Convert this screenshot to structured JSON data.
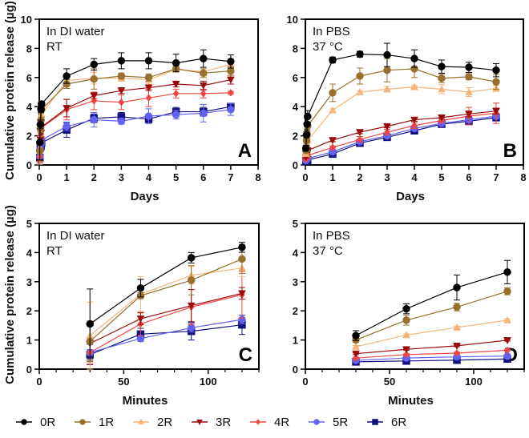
{
  "chart_data": [
    {
      "panel": "A",
      "type": "line",
      "xlabel": "Days",
      "ylabel": "Cumulative protein release (µg)",
      "annotation": [
        "In DI water",
        "RT"
      ],
      "xlim": [
        0,
        8
      ],
      "ylim": [
        0,
        10
      ],
      "xticks": [
        0,
        1,
        2,
        3,
        4,
        5,
        6,
        7,
        8
      ],
      "yticks": [
        0,
        2,
        4,
        6,
        8,
        10
      ],
      "x": [
        0.021,
        0.042,
        0.0625,
        0.083,
        1,
        2,
        3,
        4,
        5,
        6,
        7
      ],
      "series": [
        {
          "name": "0R",
          "values": [
            1.55,
            2.78,
            3.82,
            4.18,
            6.1,
            6.9,
            7.15,
            7.15,
            7.0,
            7.3,
            7.1
          ],
          "error": [
            1.2,
            0.3,
            0.2,
            0.15,
            0.5,
            0.4,
            0.55,
            0.55,
            0.6,
            0.6,
            0.45
          ]
        },
        {
          "name": "1R",
          "values": [
            0.95,
            2.52,
            3.05,
            3.78,
            5.55,
            5.9,
            6.1,
            6.0,
            6.6,
            6.3,
            6.45
          ],
          "error": [
            0.7,
            0.3,
            0.5,
            0.5,
            0.3,
            0.7,
            0.2,
            0.25,
            0.2,
            0.3,
            0.3
          ]
        },
        {
          "name": "2R",
          "values": [
            1.15,
            2.57,
            3.22,
            3.47,
            5.8,
            5.95,
            5.95,
            5.85,
            6.55,
            6.4,
            6.9
          ],
          "error": [
            1.1,
            0.6,
            0.3,
            0.3,
            0.3,
            0.4,
            0.2,
            0.3,
            0.2,
            0.3,
            0.4
          ]
        },
        {
          "name": "3R",
          "values": [
            0.88,
            1.73,
            2.18,
            2.6,
            3.9,
            4.75,
            5.1,
            5.3,
            5.55,
            5.45,
            5.85
          ],
          "error": [
            0.6,
            0.3,
            0.5,
            0.2,
            0.6,
            0.2,
            0.2,
            0.2,
            0.2,
            0.3,
            0.3
          ]
        },
        {
          "name": "4R",
          "values": [
            0.57,
            1.55,
            2.13,
            2.55,
            3.8,
            4.4,
            4.3,
            4.6,
            4.9,
            4.9,
            4.95
          ],
          "error": [
            0.4,
            0.4,
            0.6,
            0.6,
            0.7,
            0.6,
            0.5,
            0.6,
            0.3,
            0.3,
            0.1
          ]
        },
        {
          "name": "5R",
          "values": [
            0.57,
            1.05,
            1.42,
            1.7,
            2.65,
            3.1,
            3.0,
            3.35,
            3.45,
            3.55,
            3.8
          ],
          "error": [
            0.1,
            0.1,
            0.15,
            0.15,
            0.3,
            0.5,
            0.2,
            0.5,
            0.3,
            0.6,
            0.4
          ]
        },
        {
          "name": "6R",
          "values": [
            0.5,
            1.2,
            1.3,
            1.52,
            2.4,
            3.2,
            3.3,
            3.15,
            3.65,
            3.65,
            4.0
          ],
          "error": [
            0.35,
            0.2,
            0.3,
            0.3,
            0.5,
            0.3,
            0.3,
            0.3,
            0.3,
            0.3,
            0.2
          ]
        }
      ]
    },
    {
      "panel": "B",
      "type": "line",
      "xlabel": "Days",
      "ylabel": "",
      "annotation": [
        "In PBS",
        "37 °C"
      ],
      "xlim": [
        0,
        8
      ],
      "ylim": [
        0,
        10
      ],
      "xticks": [
        0,
        1,
        2,
        3,
        4,
        5,
        6,
        7,
        8
      ],
      "yticks": [
        0,
        2,
        4,
        6,
        8,
        10
      ],
      "x": [
        0.021,
        0.042,
        0.0625,
        0.083,
        1,
        2,
        3,
        4,
        5,
        6,
        7
      ],
      "series": [
        {
          "name": "0R",
          "values": [
            1.15,
            2.07,
            2.8,
            3.33,
            7.2,
            7.6,
            7.55,
            7.3,
            6.75,
            6.7,
            6.5
          ],
          "error": [
            0.2,
            0.2,
            0.4,
            0.4,
            0.2,
            0.2,
            0.8,
            0.6,
            0.45,
            0.35,
            0.45
          ]
        },
        {
          "name": "1R",
          "values": [
            1.0,
            1.68,
            2.13,
            2.67,
            4.95,
            6.1,
            6.5,
            6.6,
            5.95,
            6.05,
            5.7
          ],
          "error": [
            0.1,
            0.2,
            0.15,
            0.1,
            0.6,
            0.55,
            0.8,
            0.6,
            0.3,
            0.2,
            0.5
          ]
        },
        {
          "name": "2R",
          "values": [
            0.77,
            1.17,
            1.43,
            1.68,
            3.75,
            5.0,
            5.2,
            5.35,
            5.2,
            5.0,
            5.25
          ],
          "error": [
            0.05,
            0.05,
            0.05,
            0.05,
            0.1,
            0.1,
            0.2,
            0.1,
            0.3,
            0.3,
            0.2
          ]
        },
        {
          "name": "3R",
          "values": [
            0.53,
            0.68,
            0.8,
            0.99,
            1.7,
            2.25,
            2.65,
            3.1,
            3.25,
            3.5,
            3.7
          ],
          "error": [
            0.05,
            0.05,
            0.05,
            0.05,
            0.1,
            0.1,
            0.1,
            0.1,
            0.1,
            0.2,
            0.2
          ]
        },
        {
          "name": "4R",
          "values": [
            0.38,
            0.5,
            0.55,
            0.65,
            1.2,
            1.75,
            2.25,
            2.7,
            3.05,
            3.35,
            3.55
          ],
          "error": [
            0.05,
            0.05,
            0.05,
            0.05,
            0.1,
            0.2,
            0.2,
            0.2,
            0.2,
            0.6,
            0.7
          ]
        },
        {
          "name": "5R",
          "values": [
            0.3,
            0.38,
            0.42,
            0.45,
            0.9,
            1.6,
            2.0,
            2.5,
            2.85,
            3.1,
            3.35
          ],
          "error": [
            0.05,
            0.05,
            0.05,
            0.05,
            0.1,
            0.1,
            0.1,
            0.1,
            0.1,
            0.2,
            0.2
          ]
        },
        {
          "name": "6R",
          "values": [
            0.25,
            0.28,
            0.31,
            0.35,
            0.75,
            1.5,
            1.9,
            2.35,
            2.8,
            3.0,
            3.25
          ],
          "error": [
            0.05,
            0.05,
            0.05,
            0.05,
            0.1,
            0.1,
            0.1,
            0.1,
            0.1,
            0.2,
            0.2
          ]
        }
      ]
    },
    {
      "panel": "C",
      "type": "line",
      "xlabel": "Minutes",
      "ylabel": "Cumulative protein release (µg)",
      "annotation": [
        "In DI water",
        "RT"
      ],
      "xlim": [
        0,
        130
      ],
      "ylim": [
        0,
        5
      ],
      "xticks": [
        0,
        50,
        100
      ],
      "yticks": [
        0,
        1,
        2,
        3,
        4,
        5
      ],
      "x": [
        30,
        60,
        90,
        120
      ],
      "series": [
        {
          "name": "0R",
          "values": [
            1.55,
            2.78,
            3.82,
            4.18
          ],
          "error": [
            1.2,
            0.3,
            0.18,
            0.17
          ]
        },
        {
          "name": "1R",
          "values": [
            0.95,
            2.52,
            3.05,
            3.78
          ],
          "error": [
            0.7,
            0.1,
            0.5,
            0.5
          ]
        },
        {
          "name": "2R",
          "values": [
            1.15,
            2.57,
            3.22,
            3.47
          ],
          "error": [
            1.15,
            0.6,
            0.3,
            0.3
          ]
        },
        {
          "name": "3R",
          "values": [
            0.88,
            1.73,
            2.18,
            2.6
          ],
          "error": [
            0.6,
            0.2,
            0.55,
            0.2
          ]
        },
        {
          "name": "4R",
          "values": [
            0.57,
            1.55,
            2.13,
            2.55
          ],
          "error": [
            0.4,
            0.4,
            0.6,
            0.8
          ]
        },
        {
          "name": "5R",
          "values": [
            0.57,
            1.05,
            1.42,
            1.7
          ],
          "error": [
            0.1,
            0.1,
            0.15,
            0.15
          ]
        },
        {
          "name": "6R",
          "values": [
            0.5,
            1.2,
            1.3,
            1.52
          ],
          "error": [
            0.35,
            0.2,
            0.3,
            0.33
          ]
        }
      ]
    },
    {
      "panel": "D",
      "type": "line",
      "xlabel": "Minutes",
      "ylabel": "",
      "annotation": [
        "In PBS",
        "37 °C"
      ],
      "xlim": [
        0,
        130
      ],
      "ylim": [
        0,
        5
      ],
      "xticks": [
        0,
        50,
        100
      ],
      "yticks": [
        0,
        1,
        2,
        3,
        4,
        5
      ],
      "x": [
        30,
        60,
        90,
        120
      ],
      "series": [
        {
          "name": "0R",
          "values": [
            1.15,
            2.07,
            2.8,
            3.33
          ],
          "error": [
            0.17,
            0.17,
            0.43,
            0.4
          ]
        },
        {
          "name": "1R",
          "values": [
            1.0,
            1.68,
            2.13,
            2.67
          ],
          "error": [
            0.08,
            0.17,
            0.13,
            0.12
          ]
        },
        {
          "name": "2R",
          "values": [
            0.77,
            1.17,
            1.43,
            1.68
          ],
          "error": [
            0.04,
            0.04,
            0.04,
            0.04
          ]
        },
        {
          "name": "3R",
          "values": [
            0.53,
            0.68,
            0.8,
            0.99
          ],
          "error": [
            0.03,
            0.03,
            0.03,
            0.03
          ]
        },
        {
          "name": "4R",
          "values": [
            0.38,
            0.5,
            0.55,
            0.65
          ],
          "error": [
            0.03,
            0.03,
            0.03,
            0.03
          ]
        },
        {
          "name": "5R",
          "values": [
            0.3,
            0.38,
            0.42,
            0.45
          ],
          "error": [
            0.03,
            0.03,
            0.03,
            0.03
          ]
        },
        {
          "name": "6R",
          "values": [
            0.25,
            0.28,
            0.31,
            0.35
          ],
          "error": [
            0.03,
            0.03,
            0.03,
            0.03
          ]
        }
      ]
    }
  ],
  "legend": {
    "placement": "bottom",
    "items": [
      {
        "name": "0R",
        "color": "#000000",
        "marker": "circle"
      },
      {
        "name": "1R",
        "color": "#96702c",
        "marker": "circle"
      },
      {
        "name": "2R",
        "color": "#f5b57a",
        "marker": "triangle-up"
      },
      {
        "name": "3R",
        "color": "#9a0b0b",
        "marker": "triangle-down"
      },
      {
        "name": "4R",
        "color": "#f04646",
        "marker": "diamond"
      },
      {
        "name": "5R",
        "color": "#6262f2",
        "marker": "circle"
      },
      {
        "name": "6R",
        "color": "#10107f",
        "marker": "square"
      }
    ]
  }
}
